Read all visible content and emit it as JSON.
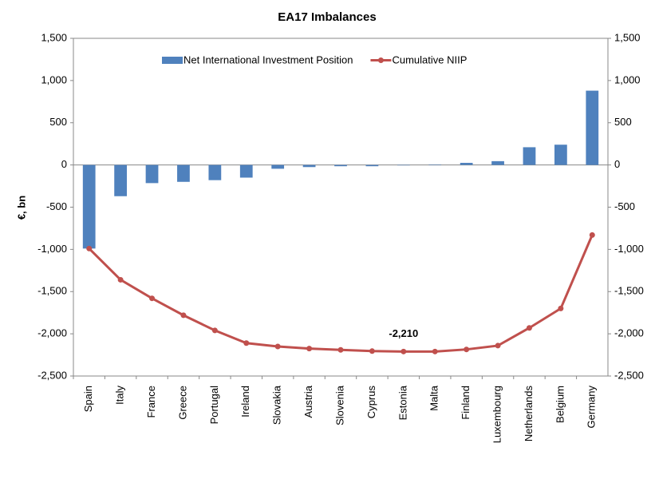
{
  "chart_data": {
    "type": "bar_line",
    "title": "EA17 Imbalances",
    "ylabel": "€, bn",
    "categories": [
      "Spain",
      "Italy",
      "France",
      "Greece",
      "Portugal",
      "Ireland",
      "Slovakia",
      "Austria",
      "Slovenia",
      "Cyprus",
      "Estonia",
      "Malta",
      "Finland",
      "Luxembourg",
      "Netherlands",
      "Belgium",
      "Germany"
    ],
    "series": [
      {
        "name": "Net International Investment Position",
        "type": "bar",
        "color": "#4f81bd",
        "values": [
          -990,
          -370,
          -215,
          -200,
          -180,
          -150,
          -45,
          -25,
          -15,
          -15,
          -5,
          5,
          25,
          45,
          210,
          240,
          880
        ]
      },
      {
        "name": "Cumulative NIIP",
        "type": "line",
        "axis": "y2",
        "color": "#c0504d",
        "values": [
          -990,
          -1360,
          -1580,
          -1780,
          -1960,
          -2110,
          -2150,
          -2175,
          -2190,
          -2205,
          -2210,
          -2210,
          -2185,
          -2140,
          -1930,
          -1700,
          -830
        ],
        "value_labels": [
          null,
          null,
          null,
          null,
          null,
          null,
          null,
          null,
          null,
          null,
          "-2,210",
          null,
          null,
          null,
          null,
          null,
          null
        ]
      }
    ],
    "ylim": [
      -2500,
      1500
    ],
    "yticks": [
      {
        "value": -2500,
        "label": "-2,500"
      },
      {
        "value": -2000,
        "label": "-2,000"
      },
      {
        "value": -1500,
        "label": "-1,500"
      },
      {
        "value": -1000,
        "label": "-1,000"
      },
      -500,
      0,
      500,
      {
        "value": 1000,
        "label": "1,000"
      },
      {
        "value": 1500,
        "label": "1,500"
      }
    ],
    "y2lim": [
      -2500,
      1500
    ],
    "y2ticks": [
      {
        "value": -2500,
        "label": "-2,500"
      },
      {
        "value": -2000,
        "label": "-2,000"
      },
      {
        "value": -1500,
        "label": "-1,500"
      },
      {
        "value": -1000,
        "label": "-1,000"
      },
      -500,
      0,
      500,
      {
        "value": 1000,
        "label": "1,000"
      },
      {
        "value": 1500,
        "label": "1,500"
      }
    ],
    "legend": "top",
    "grid": false
  }
}
